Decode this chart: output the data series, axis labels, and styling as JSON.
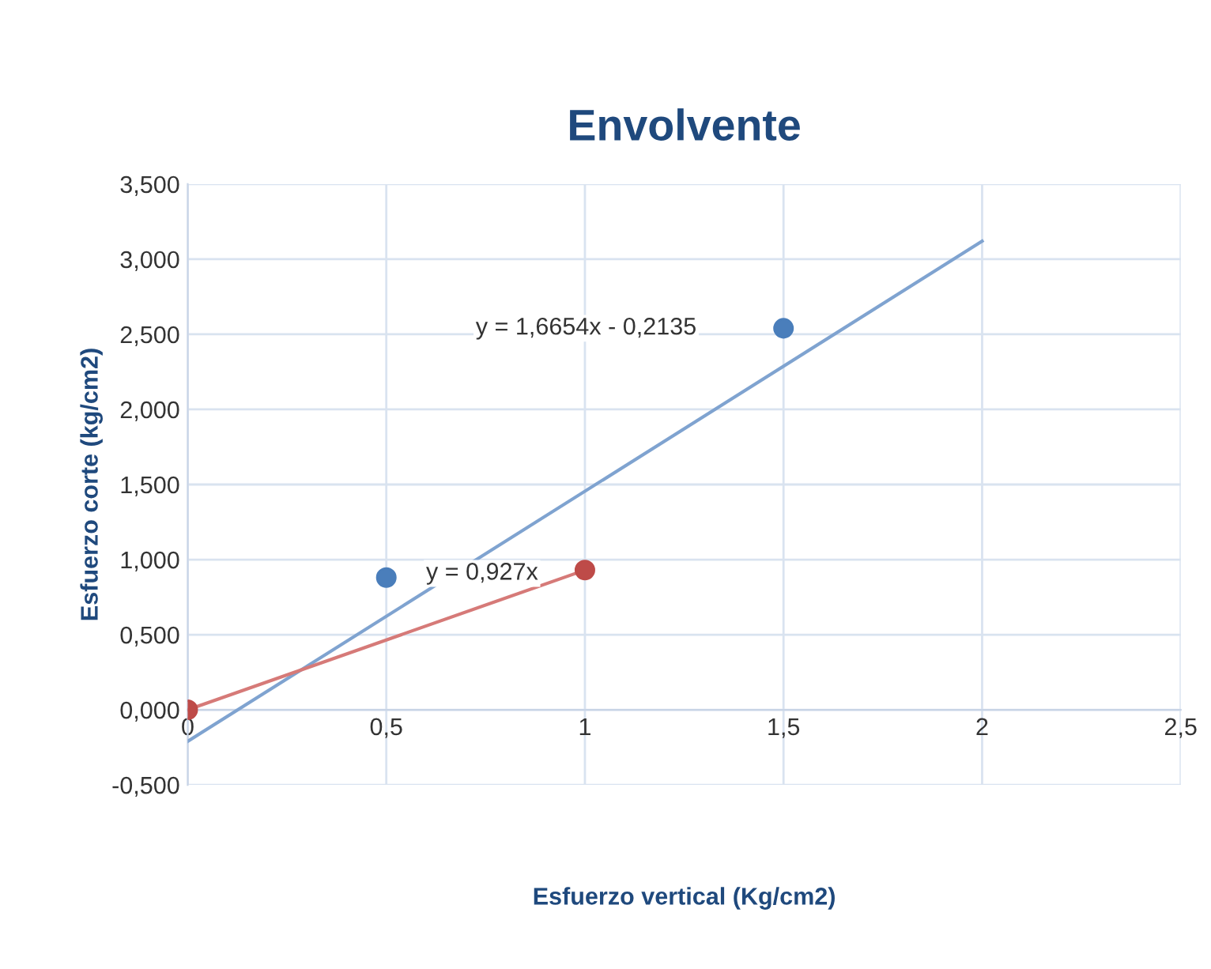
{
  "chart_data": {
    "type": "scatter",
    "title": "Envolvente",
    "xlabel": "Esfuerzo vertical (Kg/cm2)",
    "ylabel": "Esfuerzo corte (kg/cm2)",
    "series": [
      {
        "color": "#4a7ebb",
        "x": [
          0.5,
          1.5
        ],
        "values": [
          0.88,
          2.54
        ],
        "marker": "circle"
      },
      {
        "color": "#be4b48",
        "x": [
          0,
          1
        ],
        "values": [
          0,
          0.93
        ],
        "marker": "circle"
      },
      {
        "type": "line",
        "color": "#7fa3d0",
        "x": [
          0,
          2
        ],
        "values": [
          -0.21,
          3.12
        ],
        "marker": "none"
      },
      {
        "type": "line",
        "color": "#d67a78",
        "x": [
          0,
          1
        ],
        "values": [
          0,
          0.93
        ],
        "marker": "none"
      }
    ],
    "annotations": [
      "y = 1,6654x - 0,2135",
      "y = 0,927x"
    ],
    "xlim": [
      0,
      2.5
    ],
    "ylim": [
      -0.5,
      3.5
    ],
    "xticks": [
      0,
      {
        "value": 0.5,
        "label": "0,5"
      },
      1,
      {
        "value": 1.5,
        "label": "1,5"
      },
      2,
      {
        "value": 2.5,
        "label": "2,5"
      }
    ],
    "yticks": [
      {
        "value": -0.5,
        "label": "-0,500"
      },
      {
        "value": 0,
        "label": "0,000"
      },
      {
        "value": 0.5,
        "label": "0,500"
      },
      {
        "value": 1,
        "label": "1,000"
      },
      {
        "value": 1.5,
        "label": "1,500"
      },
      {
        "value": 2,
        "label": "2,000"
      },
      {
        "value": 2.5,
        "label": "2,500"
      },
      {
        "value": 3,
        "label": "3,000"
      },
      {
        "value": 3.5,
        "label": "3,500"
      }
    ],
    "grid": true,
    "legend": false
  }
}
